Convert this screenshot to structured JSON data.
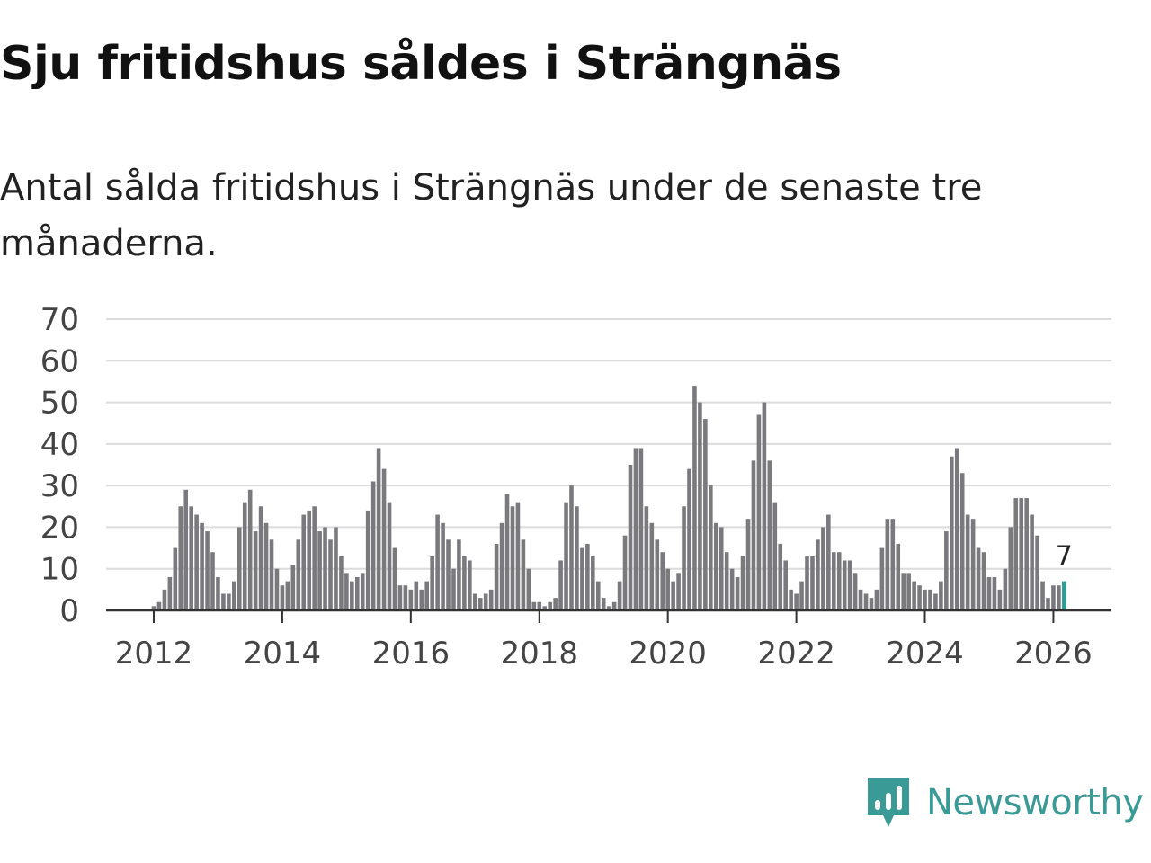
{
  "header": {
    "title": "Sju fritidshus såldes i Strängnäs",
    "subtitle": "Antal sålda fritidshus i Strängnäs under de senaste tre månaderna."
  },
  "brand": {
    "name": "Newsworthy",
    "color": "#3a9a96",
    "icon": "newsworthy-logo-icon"
  },
  "chart_data": {
    "type": "bar",
    "title": "Sju fritidshus såldes i Strängnäs",
    "subtitle": "Antal sålda fritidshus i Strängnäs under de senaste tre månaderna.",
    "xlabel": "",
    "ylabel": "",
    "ylim": [
      0,
      70
    ],
    "yticks": [
      "0",
      "10",
      "20",
      "30",
      "40",
      "50",
      "60",
      "70"
    ],
    "xticks": [
      "2012",
      "2014",
      "2016",
      "2018",
      "2020",
      "2022",
      "2024",
      "2026"
    ],
    "grid": true,
    "start": "2012-01",
    "frequency": "monthly",
    "bar_color": "#7a797e",
    "highlight_color": "#2a9d96",
    "annotation": "7",
    "values": [
      1,
      2,
      5,
      8,
      15,
      25,
      29,
      25,
      23,
      21,
      19,
      14,
      8,
      4,
      4,
      7,
      20,
      26,
      29,
      19,
      25,
      21,
      17,
      10,
      6,
      7,
      11,
      17,
      23,
      24,
      25,
      19,
      20,
      17,
      20,
      13,
      9,
      7,
      8,
      9,
      24,
      31,
      39,
      34,
      26,
      15,
      6,
      6,
      5,
      7,
      5,
      7,
      13,
      23,
      21,
      17,
      10,
      17,
      13,
      12,
      4,
      3,
      4,
      5,
      16,
      21,
      28,
      25,
      26,
      17,
      10,
      2,
      2,
      1,
      2,
      3,
      12,
      26,
      30,
      25,
      15,
      16,
      13,
      7,
      3,
      1,
      2,
      7,
      18,
      35,
      39,
      39,
      25,
      21,
      17,
      14,
      10,
      7,
      9,
      25,
      34,
      54,
      50,
      46,
      30,
      21,
      20,
      14,
      10,
      8,
      13,
      22,
      36,
      47,
      50,
      36,
      26,
      16,
      12,
      5,
      4,
      7,
      13,
      13,
      17,
      20,
      23,
      14,
      14,
      12,
      12,
      9,
      5,
      4,
      3,
      5,
      15,
      22,
      22,
      16,
      9,
      9,
      7,
      6,
      5,
      5,
      4,
      7,
      19,
      37,
      39,
      33,
      23,
      22,
      15,
      14,
      8,
      8,
      5,
      10,
      20,
      27,
      27,
      27,
      23,
      18,
      7,
      3,
      6,
      6,
      7
    ]
  }
}
